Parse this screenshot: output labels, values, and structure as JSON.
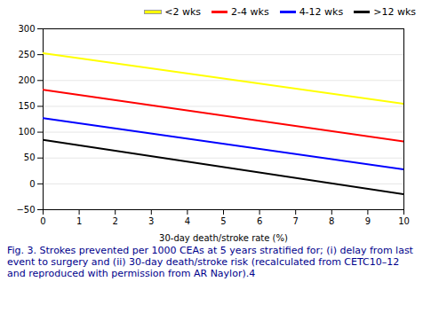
{
  "chart_data": {
    "type": "line",
    "xlabel": "30-day death/stroke rate (%)",
    "caption": "Fig. 3. Strokes prevented per 1000 CEAs at 5 years stratified for; (i) delay from last event to surgery and (ii) 30-day death/stroke risk (recalculated from CETC10–12 and reproduced with permission from AR Naylor).4",
    "x": [
      0,
      10
    ],
    "series": [
      {
        "name": "<2 wks",
        "color": "#ffff00",
        "values": [
          253,
          155
        ]
      },
      {
        "name": "2-4 wks",
        "color": "#ff0000",
        "values": [
          182,
          82
        ]
      },
      {
        "name": "4-12 wks",
        "color": "#0000ff",
        "values": [
          127,
          28
        ]
      },
      {
        "name": ">12 wks",
        "color": "#000000",
        "values": [
          85,
          -20
        ]
      }
    ],
    "xlim": [
      0,
      10
    ],
    "ylim": [
      -50,
      300
    ],
    "xticks": [
      0,
      1,
      2,
      3,
      4,
      5,
      6,
      7,
      8,
      9,
      10
    ],
    "yticks": [
      -50,
      0,
      50,
      100,
      150,
      200,
      250,
      300
    ],
    "grid": true,
    "legend": "upper right"
  }
}
